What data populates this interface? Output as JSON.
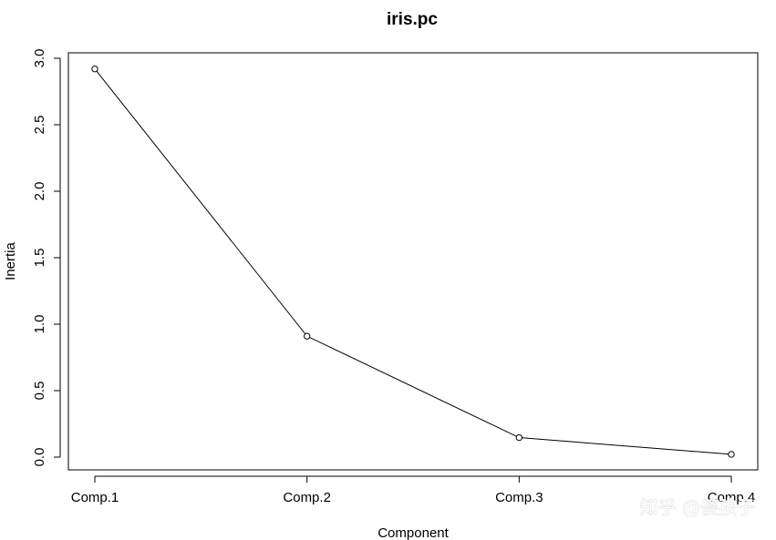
{
  "chart_data": {
    "type": "line",
    "title": "iris.pc",
    "xlabel": "Component",
    "ylabel": "Inertia",
    "categories": [
      "Comp.1",
      "Comp.2",
      "Comp.3",
      "Comp.4"
    ],
    "values": [
      2.92,
      0.91,
      0.147,
      0.021
    ],
    "y_ticks": [
      "0.0",
      "0.5",
      "1.0",
      "1.5",
      "2.0",
      "2.5",
      "3.0"
    ],
    "ylim": [
      0,
      3
    ],
    "grid": false,
    "markers": "open-circle",
    "line_color": "#000000"
  },
  "watermark": {
    "text": "知乎 @傻孩子"
  }
}
